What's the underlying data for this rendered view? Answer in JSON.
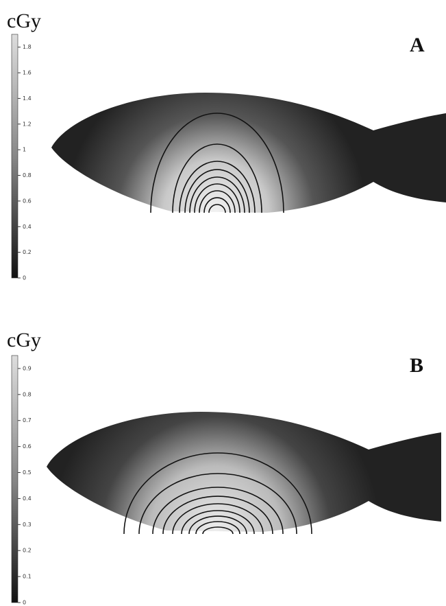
{
  "panels": [
    {
      "label": "A",
      "unit": "cGy",
      "colorbar": {
        "lim": [
          0,
          1.9
        ],
        "ticks": [
          0,
          0.2,
          0.4,
          0.6,
          0.8,
          1,
          1.2,
          1.4,
          1.6,
          1.8
        ]
      }
    },
    {
      "label": "B",
      "unit": "cGy",
      "colorbar": {
        "lim": [
          0,
          0.95
        ],
        "ticks": [
          0,
          0.1,
          0.2,
          0.3,
          0.4,
          0.5,
          0.6,
          0.7,
          0.8,
          0.9
        ]
      }
    }
  ]
}
